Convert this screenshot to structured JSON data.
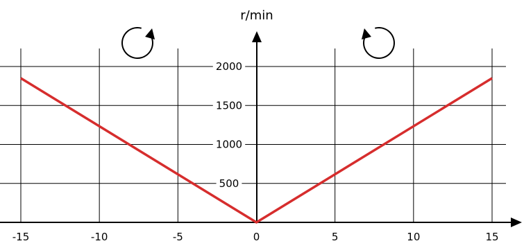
{
  "chart_data": {
    "type": "line",
    "title": "",
    "xlabel": "",
    "ylabel": "r/min",
    "xlim": [
      -15,
      15
    ],
    "ylim": [
      0,
      2000
    ],
    "x_ticks": [
      -15,
      -10,
      -5,
      0,
      5,
      10,
      15
    ],
    "y_ticks": [
      500,
      1000,
      1500,
      2000
    ],
    "x_tick_labels": [
      "-15",
      "-10",
      "-5",
      "0",
      "5",
      "10",
      "15"
    ],
    "y_tick_labels": [
      "500",
      "1000",
      "1500",
      "2000"
    ],
    "grid": true,
    "series": [
      {
        "color": "#d62d2d",
        "x": [
          -15,
          0,
          15
        ],
        "y": [
          1850,
          0,
          1850
        ]
      }
    ],
    "annotations": [
      {
        "icon": "clockwise-rotation-icon",
        "side": "left"
      },
      {
        "icon": "counterclockwise-rotation-icon",
        "side": "right"
      }
    ],
    "colors": {
      "series": "#d62d2d",
      "axis": "#000000",
      "grid": "#000000"
    }
  }
}
